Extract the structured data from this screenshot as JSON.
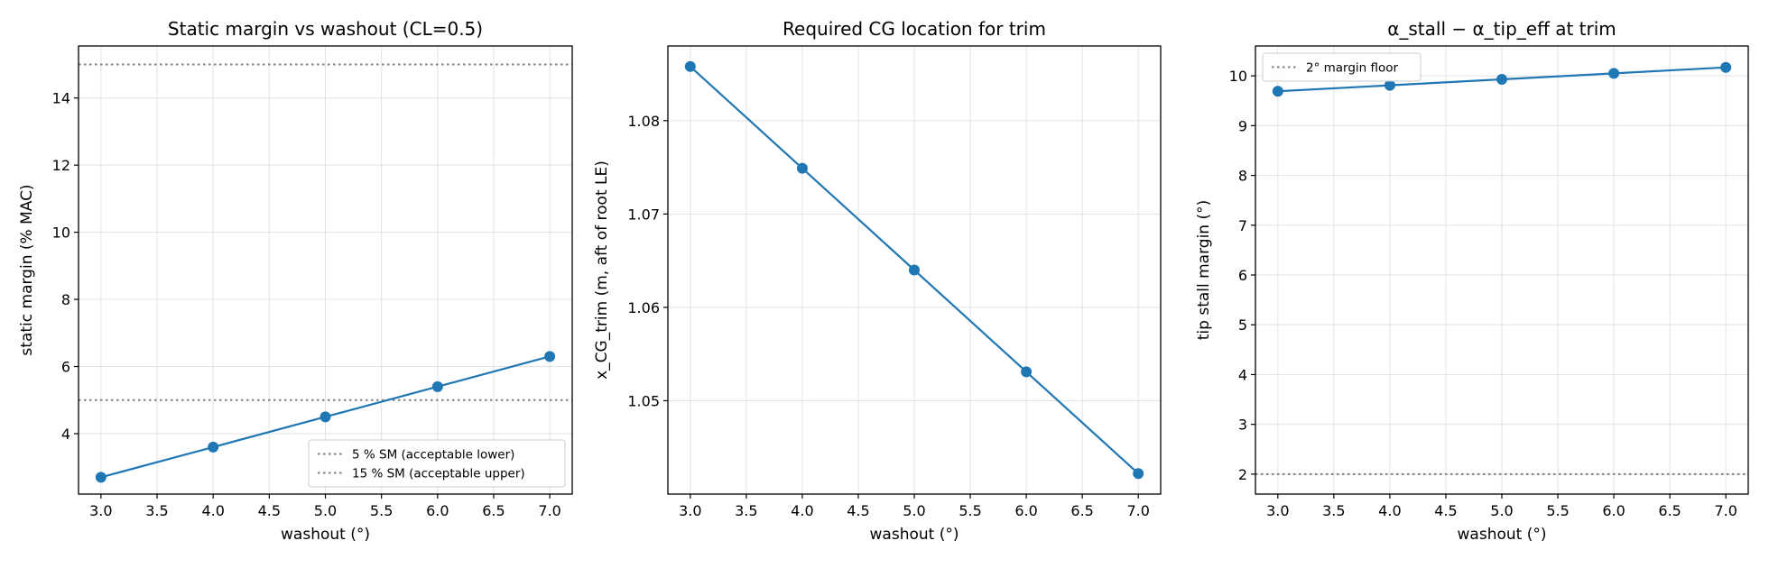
{
  "chart_data": [
    {
      "type": "line",
      "title": "Static margin vs washout (CL=0.5)",
      "xlabel": "washout (°)",
      "ylabel": "static margin (% MAC)",
      "x": [
        3.0,
        4.0,
        5.0,
        6.0,
        7.0
      ],
      "series": [
        {
          "values": [
            2.7,
            3.6,
            4.5,
            5.4,
            6.3
          ],
          "color": "#1f77b4"
        }
      ],
      "xlim": [
        2.8,
        7.2
      ],
      "ylim": [
        2.2,
        15.55
      ],
      "xticks": [
        3.0,
        3.5,
        4.0,
        4.5,
        5.0,
        5.5,
        6.0,
        6.5,
        7.0
      ],
      "xtick_labels": [
        "3.0",
        "3.5",
        "4.0",
        "4.5",
        "5.0",
        "5.5",
        "6.0",
        "6.5",
        "7.0"
      ],
      "yticks": [
        4,
        6,
        8,
        10,
        12,
        14
      ],
      "ytick_labels": [
        "4",
        "6",
        "8",
        "10",
        "12",
        "14"
      ],
      "hlines": [
        {
          "y": 5,
          "label": "5 % SM (acceptable lower)",
          "color": "#808080"
        },
        {
          "y": 15,
          "label": "15 % SM (acceptable upper)",
          "color": "#808080"
        }
      ],
      "grid": true,
      "legend_position": "lower-right"
    },
    {
      "type": "line",
      "title": "Required CG location for trim",
      "xlabel": "washout (°)",
      "ylabel": "x_CG_trim (m, aft of root LE)",
      "x": [
        3.0,
        4.0,
        5.0,
        6.0,
        7.0
      ],
      "series": [
        {
          "values": [
            1.0858,
            1.0749,
            1.064,
            1.0531,
            1.0422
          ],
          "color": "#1f77b4"
        }
      ],
      "xlim": [
        2.8,
        7.2
      ],
      "ylim": [
        1.04,
        1.088
      ],
      "xticks": [
        3.0,
        3.5,
        4.0,
        4.5,
        5.0,
        5.5,
        6.0,
        6.5,
        7.0
      ],
      "xtick_labels": [
        "3.0",
        "3.5",
        "4.0",
        "4.5",
        "5.0",
        "5.5",
        "6.0",
        "6.5",
        "7.0"
      ],
      "yticks": [
        1.05,
        1.06,
        1.07,
        1.08
      ],
      "ytick_labels": [
        "1.05",
        "1.06",
        "1.07",
        "1.08"
      ],
      "hlines": [],
      "grid": true,
      "legend_position": "none"
    },
    {
      "type": "line",
      "title": "α_stall − α_tip_eff at trim",
      "xlabel": "washout (°)",
      "ylabel": "tip stall margin (°)",
      "x": [
        3.0,
        4.0,
        5.0,
        6.0,
        7.0
      ],
      "series": [
        {
          "values": [
            9.69,
            9.81,
            9.93,
            10.05,
            10.17
          ],
          "color": "#1f77b4"
        }
      ],
      "xlim": [
        2.8,
        7.2
      ],
      "ylim": [
        1.6,
        10.6
      ],
      "xticks": [
        3.0,
        3.5,
        4.0,
        4.5,
        5.0,
        5.5,
        6.0,
        6.5,
        7.0
      ],
      "xtick_labels": [
        "3.0",
        "3.5",
        "4.0",
        "4.5",
        "5.0",
        "5.5",
        "6.0",
        "6.5",
        "7.0"
      ],
      "yticks": [
        2,
        3,
        4,
        5,
        6,
        7,
        8,
        9,
        10
      ],
      "ytick_labels": [
        "2",
        "3",
        "4",
        "5",
        "6",
        "7",
        "8",
        "9",
        "10"
      ],
      "hlines": [
        {
          "y": 2,
          "label": "2° margin floor",
          "color": "#808080"
        }
      ],
      "grid": true,
      "legend_position": "upper-left"
    }
  ]
}
